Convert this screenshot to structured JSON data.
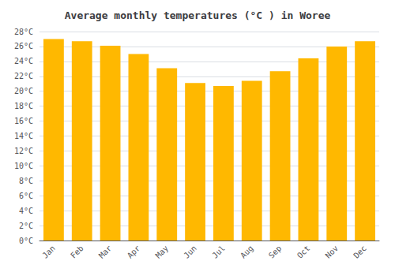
{
  "chart_data": {
    "type": "bar",
    "title": "Average monthly temperatures (°C ) in Woree",
    "categories": [
      "Jan",
      "Feb",
      "Mar",
      "Apr",
      "May",
      "Jun",
      "Jul",
      "Aug",
      "Sep",
      "Oct",
      "Nov",
      "Dec"
    ],
    "values": [
      27.0,
      26.7,
      26.1,
      25.0,
      23.1,
      21.1,
      20.7,
      21.4,
      22.7,
      24.4,
      26.0,
      26.7
    ],
    "color": "#FFB800",
    "ylim": [
      0,
      28
    ],
    "yticks": [
      {
        "value": 0,
        "label": "0°C"
      },
      {
        "value": 2,
        "label": "2°C"
      },
      {
        "value": 4,
        "label": "4°C"
      },
      {
        "value": 6,
        "label": "6°C"
      },
      {
        "value": 8,
        "label": "8°C"
      },
      {
        "value": 10,
        "label": "10°C"
      },
      {
        "value": 12,
        "label": "12°C"
      },
      {
        "value": 14,
        "label": "14°C"
      },
      {
        "value": 16,
        "label": "16°C"
      },
      {
        "value": 18,
        "label": "18°C"
      },
      {
        "value": 20,
        "label": "20°C"
      },
      {
        "value": 22,
        "label": "22°C"
      },
      {
        "value": 24,
        "label": "24°C"
      },
      {
        "value": 26,
        "label": "26°C"
      },
      {
        "value": 28,
        "label": "28°C"
      }
    ],
    "grid": true
  }
}
